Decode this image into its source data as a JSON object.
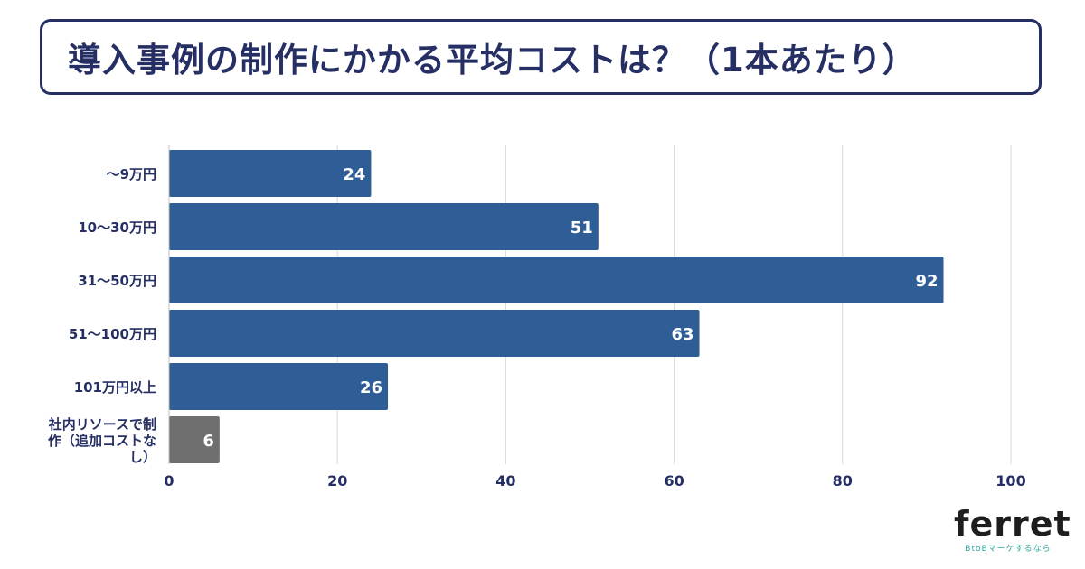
{
  "title": "導入事例の制作にかかる平均コストは？（1本あたり）",
  "chart_data": {
    "type": "bar",
    "orientation": "horizontal",
    "title": "導入事例の制作にかかる平均コストは？（1本あたり）",
    "categories": [
      "〜9万円",
      "10〜30万円",
      "31〜50万円",
      "51〜100万円",
      "101万円以上",
      "社内リソースで制作（追加コストなし）"
    ],
    "category_lines": [
      [
        "〜9万円"
      ],
      [
        "10〜30万円"
      ],
      [
        "31〜50万円"
      ],
      [
        "51〜100万円"
      ],
      [
        "101万円以上"
      ],
      [
        "社内リソースで制",
        "作（追加コストな",
        "し）"
      ]
    ],
    "values": [
      24,
      51,
      92,
      63,
      26,
      6
    ],
    "bar_colors": [
      "#2f5d95",
      "#2f5d95",
      "#2f5d95",
      "#2f5d95",
      "#2f5d95",
      "#6f6f6f"
    ],
    "xlim": [
      0,
      100
    ],
    "xticks": [
      0,
      20,
      40,
      60,
      80,
      100
    ],
    "xlabel": "",
    "ylabel": "",
    "grid": "vertical",
    "legend": "none"
  },
  "logo": {
    "name": "ferret",
    "tagline": "BtoBマーケするなら"
  },
  "colors": {
    "accent": "#262f63",
    "bar": "#2f5d95",
    "bar_other": "#6f6f6f",
    "grid": "#d9d9d9",
    "logo_tagline": "#2ba59a"
  }
}
